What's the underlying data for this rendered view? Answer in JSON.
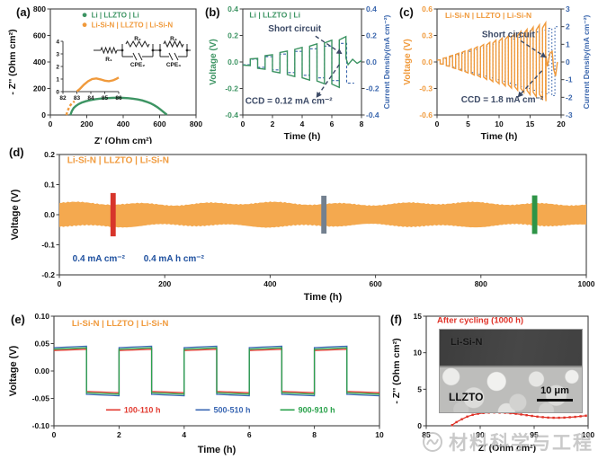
{
  "watermark": {
    "text": "材料科学与工程"
  },
  "chart_data": {
    "a": {
      "type": "scatter",
      "panel": "(a)",
      "xlabel": "Z' (Ohm cm²)",
      "ylabel": "- Z'' (Ohm cm²)",
      "xlim": [
        0,
        800
      ],
      "ylim": [
        0,
        800
      ],
      "xticks": [
        "0",
        "200",
        "400",
        "600",
        "800"
      ],
      "yticks": [
        "0",
        "200",
        "400",
        "600",
        "800"
      ],
      "legend": [
        {
          "label": "Li | LLZTO | Li",
          "color": "#3d9463"
        },
        {
          "label": "Li-Si-N | LLZTO | Li-Si-N",
          "color": "#f09a3c"
        }
      ],
      "series": [
        {
          "name": "Li | LLZTO | Li",
          "color": "#3d9463",
          "dashed": false,
          "points": [
            [
              110,
              0
            ],
            [
              118,
              30
            ],
            [
              128,
              52
            ],
            [
              140,
              68
            ],
            [
              155,
              82
            ],
            [
              172,
              93
            ],
            [
              195,
              104
            ],
            [
              220,
              112
            ],
            [
              248,
              119
            ],
            [
              278,
              124
            ],
            [
              308,
              127
            ],
            [
              338,
              129
            ],
            [
              368,
              130
            ],
            [
              398,
              129
            ],
            [
              428,
              127
            ],
            [
              455,
              123
            ],
            [
              480,
              117
            ],
            [
              505,
              110
            ],
            [
              528,
              100
            ],
            [
              550,
              88
            ],
            [
              570,
              74
            ],
            [
              588,
              58
            ],
            [
              604,
              42
            ],
            [
              617,
              28
            ],
            [
              628,
              15
            ],
            [
              636,
              6
            ],
            [
              640,
              2
            ]
          ]
        },
        {
          "name": "Li-Si-N | LLZTO | Li-Si-N",
          "color": "#f09a3c",
          "dashed": true,
          "points": [
            [
              88,
              0
            ],
            [
              92,
              18
            ],
            [
              96,
              34
            ],
            [
              100,
              48
            ],
            [
              105,
              62
            ],
            [
              110,
              74
            ],
            [
              116,
              84
            ],
            [
              122,
              92
            ],
            [
              128,
              98
            ],
            [
              134,
              101
            ]
          ]
        }
      ],
      "inset_plot": {
        "xlim": [
          82,
          86
        ],
        "ylim": [
          0,
          4
        ],
        "xticks": [
          "82",
          "83",
          "84",
          "85",
          "86"
        ],
        "yticks": [
          "0",
          "1",
          "2",
          "3",
          "4"
        ],
        "color": "#f09a3c",
        "points": [
          [
            83,
            0.02
          ],
          [
            83.2,
            0.2
          ],
          [
            83.5,
            0.55
          ],
          [
            83.8,
            0.82
          ],
          [
            84.1,
            1.0
          ],
          [
            84.4,
            1.05
          ],
          [
            84.7,
            0.97
          ],
          [
            85.0,
            0.87
          ],
          [
            85.3,
            0.83
          ],
          [
            85.6,
            0.9
          ],
          [
            85.8,
            1.0
          ],
          [
            86,
            1.12
          ]
        ]
      },
      "circuit": {
        "r1": "R₁",
        "r2": "R₂",
        "r3": "R₃",
        "cpe2": "CPE₂",
        "cpe3": "CPE₃"
      }
    },
    "b": {
      "type": "line",
      "panel": "(b)",
      "title": {
        "text": "Li | LLZTO | Li",
        "color": "#3d9463",
        "x": 0.45,
        "y": 0.335
      },
      "xlabel": "Time (h)",
      "ylabel_left": "Voltage (V)",
      "ylabel_right": "Current Density(mA cm⁻²)",
      "xlim": [
        0,
        8
      ],
      "ylim": [
        -0.4,
        0.4
      ],
      "ylim_right": [
        -0.4,
        0.4
      ],
      "xticks": [
        "0",
        "2",
        "4",
        "6",
        "8"
      ],
      "yticks_left": [
        "0.4",
        "0.2",
        "0.0",
        "-0.2",
        "-0.4"
      ],
      "yticks_right": [
        "0.4",
        "0.2",
        "0.0",
        "-0.2",
        "-0.4"
      ],
      "colors": {
        "voltage": "#3d9463",
        "current": "#3a66ad"
      },
      "period": 1,
      "neg_first": true,
      "current_amps": [
        0.02,
        0.04,
        0.06,
        0.08,
        0.1,
        0.12,
        0.14,
        0.16
      ],
      "current_t_end": 7.5,
      "voltage_scale": 1.28,
      "voltage_tilt": 0.07,
      "short_t": 6.95,
      "voltage_tail": [
        [
          6.95,
          0.03
        ],
        [
          7.1,
          -0.02
        ],
        [
          7.4,
          0.02
        ],
        [
          7.7,
          -0.01
        ],
        [
          8,
          0.01
        ]
      ],
      "annotations": [
        {
          "text": "Short circuit",
          "x": 3.5,
          "y": 0.23,
          "color": "#3c4a66",
          "size": 10
        },
        {
          "text": "CCD = 0.12 mA cm⁻²",
          "x": 3.1,
          "y": -0.315,
          "color": "#3c4a66",
          "size": 10
        }
      ],
      "arrows": [
        {
          "x1": 4.9,
          "y1": 0.195,
          "x2": 6.7,
          "y2": 0.06
        },
        {
          "x1": 6.5,
          "y1": -0.02,
          "x2": 4.95,
          "y2": -0.27
        }
      ]
    },
    "c": {
      "type": "line",
      "panel": "(c)",
      "title": {
        "text": "Li-Si-N | LLZTO | Li-Si-N",
        "color": "#f09a3c",
        "x": 1.3,
        "y": 0.5
      },
      "xlabel": "Time (h)",
      "ylabel_left": "Voltage (V)",
      "ylabel_right": "Current Density(mA cm⁻²)",
      "xlim": [
        0,
        20
      ],
      "ylim": [
        -0.6,
        0.6
      ],
      "ylim_right": [
        -3,
        3
      ],
      "xticks": [
        "0",
        "5",
        "10",
        "15",
        "20"
      ],
      "yticks_left": [
        "0.6",
        "0.3",
        "0.0",
        "-0.3",
        "-0.6"
      ],
      "yticks_right": [
        "3",
        "2",
        "1",
        "0",
        "-1",
        "-2",
        "-3"
      ],
      "colors": {
        "voltage": "#f09a3c",
        "current": "#3a66ad"
      },
      "period": 1,
      "neg_first": false,
      "current_amps": [
        0.1,
        0.2,
        0.3,
        0.4,
        0.5,
        0.6,
        0.7,
        0.8,
        0.9,
        1.0,
        1.1,
        1.2,
        1.3,
        1.4,
        1.5,
        1.6,
        1.7,
        1.8,
        1.9,
        2.0
      ],
      "current_t_end": 19.5,
      "voltage_scale": 0.23,
      "voltage_tilt": 0.07,
      "short_t": 17.55,
      "voltage_tail": [
        [
          17.55,
          0.07
        ],
        [
          17.8,
          -0.05
        ],
        [
          18.2,
          0.1
        ],
        [
          18.55,
          0.12
        ],
        [
          18.8,
          -0.08
        ],
        [
          19.1,
          -0.16
        ],
        [
          19.4,
          0.0
        ]
      ],
      "annotations": [
        {
          "text": "Short circuit",
          "x": 11.5,
          "y": 0.28,
          "color": "#3c4a66",
          "size": 10
        },
        {
          "text": "CCD = 1.8 mA cm⁻²",
          "x": 10.5,
          "y": -0.46,
          "color": "#3c4a66",
          "size": 10
        }
      ],
      "arrows": [
        {
          "x1": 13.5,
          "y1": 0.24,
          "x2": 17.6,
          "y2": 0.05
        },
        {
          "x1": 16.9,
          "y1": -0.1,
          "x2": 13.0,
          "y2": -0.4
        }
      ]
    },
    "d": {
      "type": "area",
      "panel": "(d)",
      "title": {
        "text": "Li-Si-N | LLZTO | Li-Si-N",
        "color": "#f09a3c",
        "x": 15,
        "y": 0.172
      },
      "xlabel": "Time (h)",
      "ylabel": "Voltage (V)",
      "xlim": [
        0,
        1000
      ],
      "ylim": [
        -0.2,
        0.2
      ],
      "xticks": [
        "0",
        "200",
        "400",
        "600",
        "800",
        "1000"
      ],
      "yticks": [
        "0.2",
        "0.1",
        "0.0",
        "-0.1",
        "-0.2"
      ],
      "band_color": "#f4a94f",
      "band_amp": 0.0365,
      "t_end": 1000,
      "markers": [
        {
          "t": 102,
          "color": "#d7352b",
          "half": 0.072,
          "w": 10
        },
        {
          "t": 502,
          "color": "#73808f",
          "half": 0.063,
          "w": 10
        },
        {
          "t": 902,
          "color": "#2e9447",
          "half": 0.064,
          "w": 10
        }
      ],
      "rate_labels": [
        {
          "text": "0.4 mA cm⁻²",
          "x": 25,
          "y": -0.155,
          "color": "#1d4f9e"
        },
        {
          "text": "0.4 mA h cm⁻²",
          "x": 160,
          "y": -0.155,
          "color": "#1d4f9e"
        }
      ]
    },
    "e": {
      "type": "line",
      "panel": "(e)",
      "title": {
        "text": "Li-Si-N | LLZTO | Li-Si-N",
        "color": "#f09a3c",
        "x": 0.55,
        "y": 0.082
      },
      "xlabel": "Time (h)",
      "ylabel": "Voltage (V)",
      "xlim": [
        0,
        10
      ],
      "ylim": [
        -0.1,
        0.1
      ],
      "xticks": [
        "0",
        "2",
        "4",
        "6",
        "8",
        "10"
      ],
      "yticks": [
        "0.10",
        "0.05",
        "0.00",
        "-0.05",
        "-0.10"
      ],
      "period": 2,
      "t_end": 10,
      "tilt": 0.03,
      "series": [
        {
          "name": "100-110 h",
          "color": "#e23b31",
          "amp": 0.0385
        },
        {
          "name": "500-510 h",
          "color": "#3a67b3",
          "amp": 0.044
        },
        {
          "name": "900-910 h",
          "color": "#2ba24c",
          "amp": 0.041
        }
      ],
      "legend_y": -0.076,
      "legend_x": [
        1.6,
        4.35,
        6.95
      ]
    },
    "f": {
      "type": "scatter",
      "panel": "(f)",
      "label": {
        "text": "After cycling (1000 h)",
        "color": "#e03228",
        "x": 86.0,
        "y": 14.1
      },
      "xlabel": "Z' (Ohm cm²)",
      "ylabel": "- Z'' (Ohm cm²)",
      "xlim": [
        85,
        100
      ],
      "ylim": [
        0,
        15
      ],
      "xticks": [
        "85",
        "90",
        "95",
        "100"
      ],
      "yticks": [
        "0",
        "5",
        "10",
        "15"
      ],
      "color": "#e03228",
      "points": [
        [
          87.4,
          0.1
        ],
        [
          87.8,
          0.5
        ],
        [
          88.3,
          0.9
        ],
        [
          88.8,
          1.25
        ],
        [
          89.3,
          1.5
        ],
        [
          89.8,
          1.65
        ],
        [
          90.3,
          1.75
        ],
        [
          90.8,
          1.8
        ],
        [
          91.3,
          1.82
        ],
        [
          91.8,
          1.8
        ],
        [
          92.3,
          1.78
        ],
        [
          92.8,
          1.72
        ],
        [
          93.3,
          1.65
        ],
        [
          93.8,
          1.55
        ],
        [
          94.3,
          1.45
        ],
        [
          94.8,
          1.35
        ],
        [
          95.3,
          1.25
        ],
        [
          95.8,
          1.18
        ],
        [
          96.3,
          1.12
        ],
        [
          96.8,
          1.1
        ],
        [
          97.3,
          1.1
        ],
        [
          97.8,
          1.12
        ],
        [
          98.3,
          1.17
        ],
        [
          98.8,
          1.22
        ],
        [
          99.3,
          1.3
        ],
        [
          99.8,
          1.38
        ]
      ],
      "inset": {
        "top_label": "Li-Si-N",
        "bottom_label": "LLZTO",
        "scale_label": "10 μm"
      }
    }
  }
}
